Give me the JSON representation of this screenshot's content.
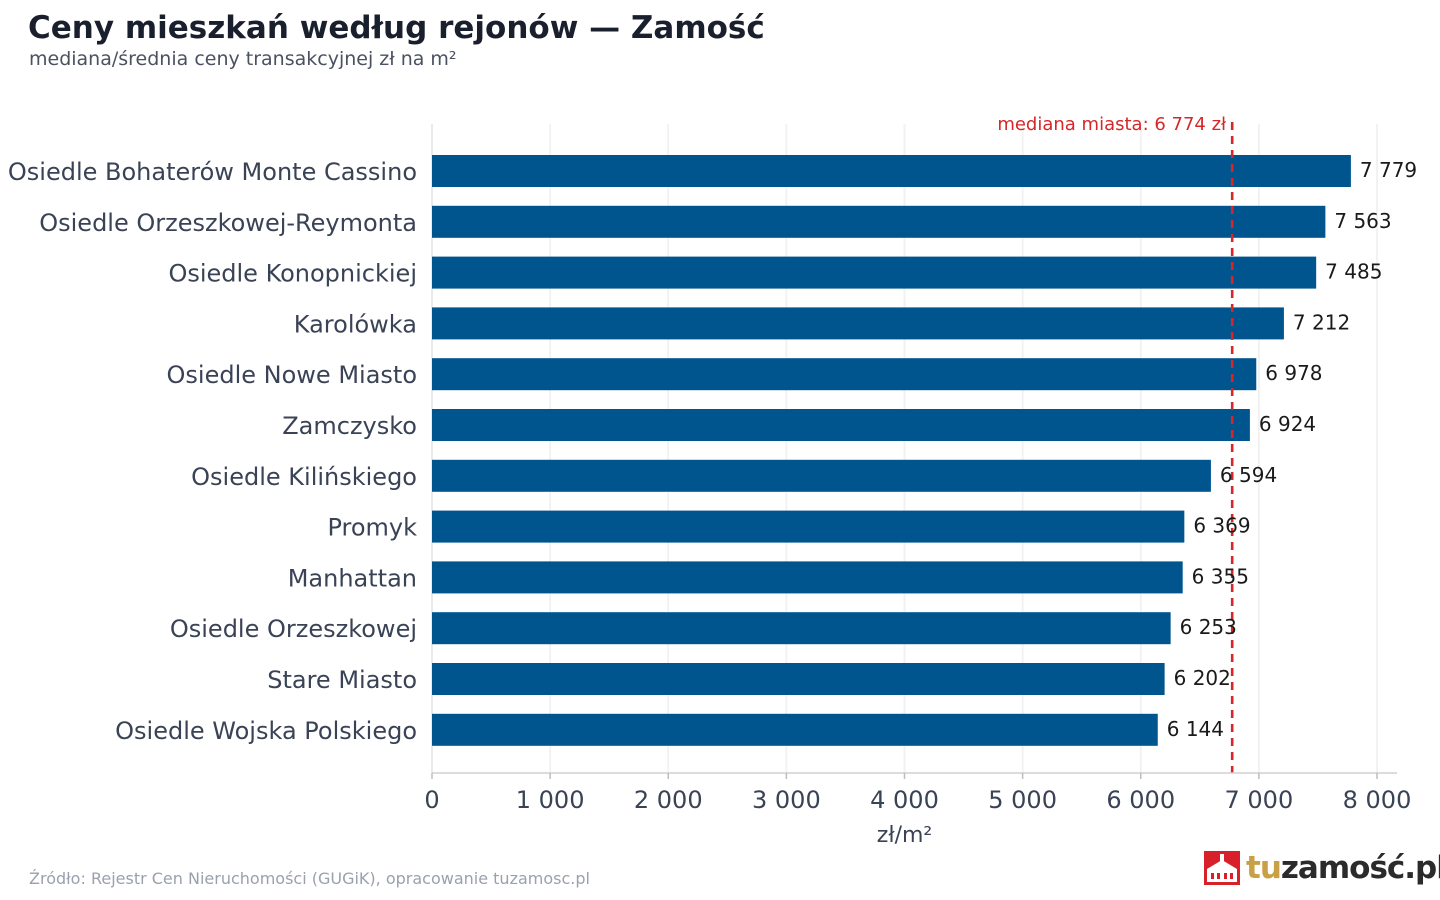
{
  "title": "Ceny mieszkań według rejonów — Zamość",
  "subtitle": "mediana/średnia ceny transakcyjnej zł na m²",
  "source": "Źródło: Rejestr Cen Nieruchomości (GUGiK), opracowanie tuzamosc.pl",
  "brand": {
    "part1": "tu",
    "part2": "zamość",
    "part3": ".pl",
    "icon": "town-hall-icon"
  },
  "colors": {
    "bar": "#00558f",
    "median": "#d62728",
    "grid": "#e3e3e3",
    "axis": "#d0d0d0"
  },
  "chart_data": {
    "type": "bar",
    "orientation": "horizontal",
    "categories": [
      "Osiedle Bohaterów Monte Cassino",
      "Osiedle Orzeszkowej-Reymonta",
      "Osiedle Konopnickiej",
      "Karolówka",
      "Osiedle Nowe Miasto",
      "Zamczysko",
      "Osiedle Kilińskiego",
      "Promyk",
      "Manhattan",
      "Osiedle Orzeszkowej",
      "Stare Miasto",
      "Osiedle Wojska Polskiego"
    ],
    "values": [
      7779,
      7563,
      7485,
      7212,
      6978,
      6924,
      6594,
      6369,
      6355,
      6253,
      6202,
      6144
    ],
    "value_labels": [
      "7 779",
      "7 563",
      "7 485",
      "7 212",
      "6 978",
      "6 924",
      "6 594",
      "6 369",
      "6 355",
      "6 253",
      "6 202",
      "6 144"
    ],
    "xlabel": "zł/m²",
    "ylabel": "",
    "xlim": [
      0,
      8000
    ],
    "xticks": [
      0,
      1000,
      2000,
      3000,
      4000,
      5000,
      6000,
      7000,
      8000
    ],
    "xtick_labels": [
      "0",
      "1 000",
      "2 000",
      "3 000",
      "4 000",
      "5 000",
      "6 000",
      "7 000",
      "8 000"
    ],
    "grid": "vertical",
    "legend": "none",
    "reference_line": {
      "value": 6774,
      "label": "mediana miasta: 6 774 zł",
      "style": "dashed"
    }
  }
}
